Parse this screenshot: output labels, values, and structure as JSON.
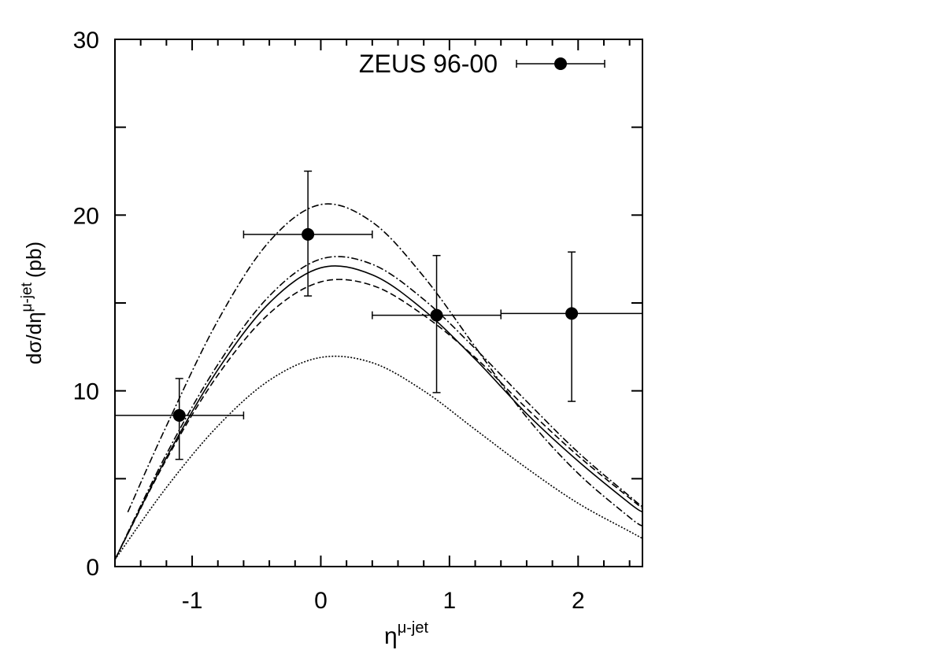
{
  "chart_data": {
    "type": "errorbar",
    "xlim": [
      -1.6,
      2.5
    ],
    "ylim": [
      0,
      30
    ],
    "xticks": [
      -1,
      0,
      1,
      2
    ],
    "yticks": [
      0,
      10,
      20,
      30
    ],
    "xticks_minor": [
      -1.4,
      -1.2,
      -0.8,
      -0.6,
      -0.4,
      -0.2,
      0.2,
      0.4,
      0.6,
      0.8,
      1.2,
      1.4,
      1.6,
      1.8,
      2.2,
      2.4
    ],
    "yticks_minor": [
      5,
      15,
      25
    ],
    "xlabel": "η",
    "xlabel_sup": "μ-jet",
    "ylabel": "dσ/dη",
    "ylabel_sup": "μ-jet",
    "ylabel_unit": "(pb)",
    "legend": "upper right",
    "series": [
      {
        "name": "ZEUS 96-00",
        "color": "#000000",
        "x": [
          -1.1,
          -0.1,
          0.9,
          1.95
        ],
        "values": [
          8.6,
          18.9,
          14.3,
          14.4
        ],
        "yerr_minus": [
          2.5,
          3.5,
          4.4,
          5.0
        ],
        "yerr_plus": [
          2.1,
          3.6,
          3.4,
          3.5
        ],
        "x_low": [
          -1.6,
          -0.6,
          0.4,
          1.4
        ],
        "x_high": [
          -0.6,
          0.4,
          1.4,
          2.5
        ]
      }
    ],
    "curves": [
      {
        "style": "solid",
        "color": "#000000",
        "x": [
          -1.6,
          -1.2,
          -0.8,
          -0.4,
          0,
          0.4,
          0.8,
          1.2,
          1.6,
          2.0,
          2.4,
          2.5
        ],
        "values": [
          0.4,
          6.2,
          11.2,
          15.0,
          17.0,
          16.6,
          14.6,
          11.8,
          8.7,
          6.0,
          3.6,
          3.1
        ]
      },
      {
        "style": "dashed",
        "color": "#000000",
        "x": [
          -1.6,
          -1.2,
          -0.8,
          -0.4,
          0,
          0.4,
          0.8,
          1.2,
          1.6,
          2.0,
          2.4,
          2.5
        ],
        "values": [
          0.4,
          6.1,
          10.9,
          14.4,
          16.2,
          16.0,
          14.3,
          11.9,
          9.0,
          6.3,
          3.9,
          3.3
        ]
      },
      {
        "style": "dashdot",
        "color": "#000000",
        "x": [
          -1.6,
          -1.2,
          -0.8,
          -0.4,
          0,
          0.4,
          0.8,
          1.2,
          1.6,
          2.0,
          2.4,
          2.5
        ],
        "values": [
          0.4,
          6.4,
          11.5,
          15.4,
          17.5,
          17.2,
          15.2,
          12.4,
          9.4,
          6.5,
          4.0,
          3.4
        ]
      },
      {
        "style": "dashdot",
        "color": "#000000",
        "x": [
          -1.5,
          -1.2,
          -0.8,
          -0.4,
          0,
          0.4,
          0.8,
          1.2,
          1.6,
          2.0,
          2.4,
          2.5
        ],
        "values": [
          3.1,
          8.0,
          14.0,
          18.5,
          20.6,
          19.6,
          16.5,
          12.5,
          8.5,
          5.3,
          2.8,
          2.3
        ]
      },
      {
        "style": "dotted",
        "color": "#000000",
        "x": [
          -1.6,
          -1.2,
          -0.8,
          -0.4,
          0,
          0.4,
          0.8,
          1.2,
          1.6,
          2.0,
          2.4,
          2.5
        ],
        "values": [
          0.4,
          4.5,
          8.0,
          10.6,
          11.9,
          11.6,
          10.0,
          7.8,
          5.6,
          3.6,
          2.0,
          1.6
        ]
      }
    ]
  }
}
